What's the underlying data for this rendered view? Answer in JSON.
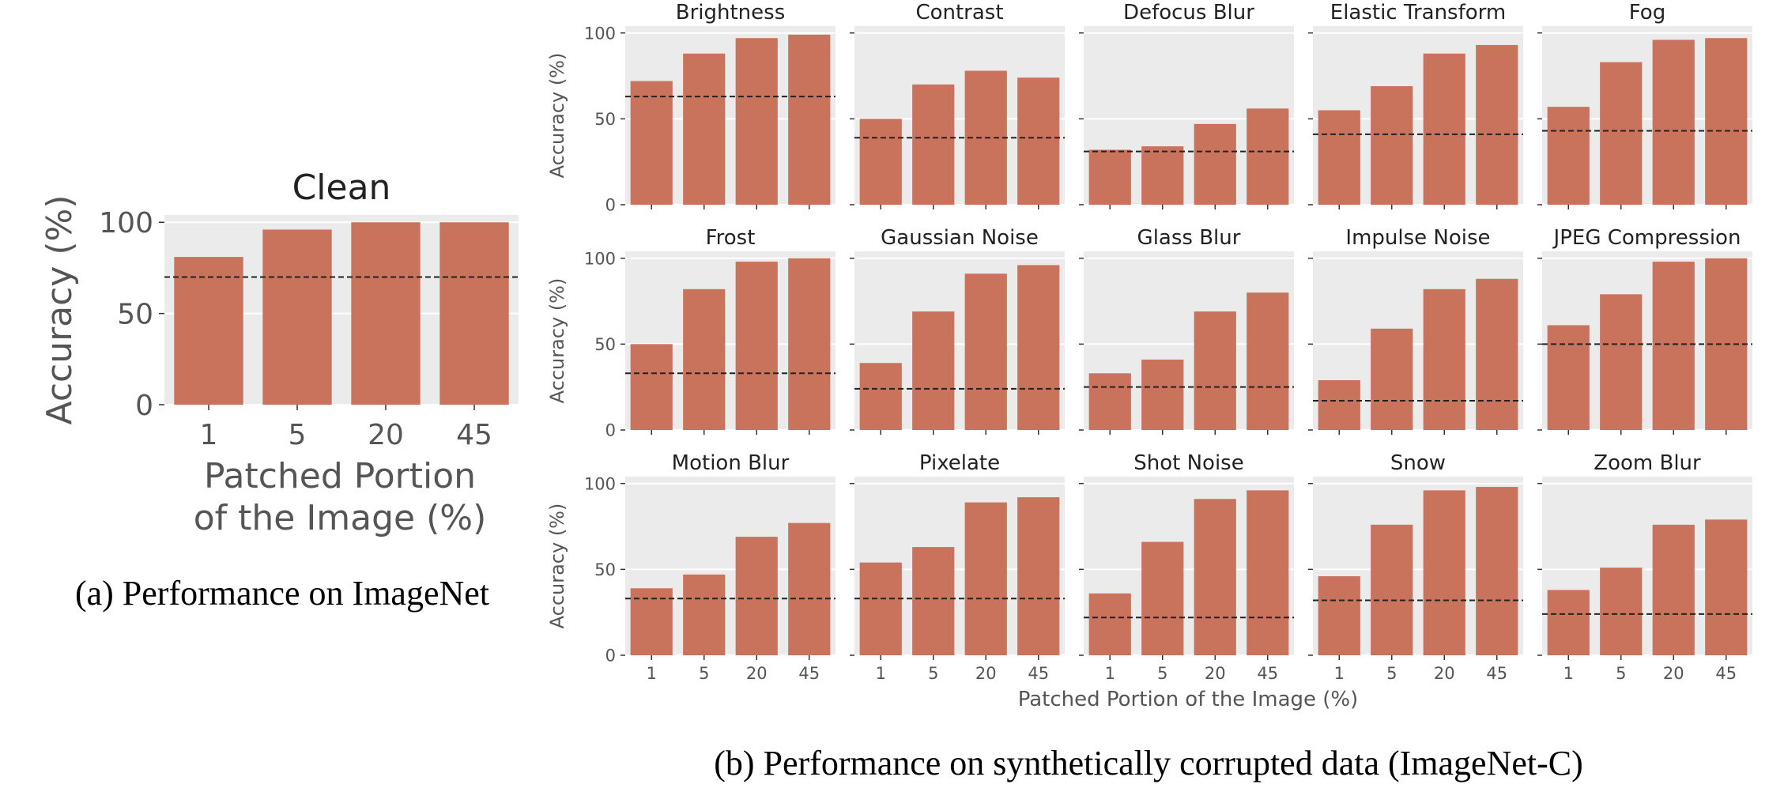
{
  "captions": {
    "a": "(a) Performance on ImageNet",
    "b": "(b) Performance on synthetically corrupted data (ImageNet-C)"
  },
  "colors": {
    "bar": "#c9735d",
    "panel_bg": "#ebebeb",
    "baseline": "#222222"
  },
  "shared": {
    "xlabel": "Patched Portion of the Image (%)",
    "ylabel": "Accuracy (%)",
    "yticks": [
      0,
      50,
      100
    ],
    "ylim": [
      0,
      104
    ]
  },
  "chart_data": [
    {
      "type": "bar",
      "title": "Clean",
      "xlabel_lines": [
        "Patched Portion",
        "of the Image (%)"
      ],
      "ylabel": "Accuracy (%)",
      "categories": [
        "1",
        "5",
        "20",
        "45"
      ],
      "values": [
        81,
        96,
        100,
        100
      ],
      "baseline": 70,
      "ylim": [
        0,
        104
      ],
      "grid": true
    },
    {
      "type": "bar",
      "layout": "3x5 small multiples",
      "categories": [
        "1",
        "5",
        "20",
        "45"
      ],
      "xlabel": "Patched Portion of the Image (%)",
      "ylabel": "Accuracy (%)",
      "ylim": [
        0,
        104
      ],
      "grid": true,
      "panels": [
        {
          "title": "Brightness",
          "values": [
            72,
            88,
            97,
            99
          ],
          "baseline": 63
        },
        {
          "title": "Contrast",
          "values": [
            50,
            70,
            78,
            74
          ],
          "baseline": 39
        },
        {
          "title": "Defocus Blur",
          "values": [
            32,
            34,
            47,
            56
          ],
          "baseline": 31
        },
        {
          "title": "Elastic Transform",
          "values": [
            55,
            69,
            88,
            93
          ],
          "baseline": 41
        },
        {
          "title": "Fog",
          "values": [
            57,
            83,
            96,
            97
          ],
          "baseline": 43
        },
        {
          "title": "Frost",
          "values": [
            50,
            82,
            98,
            100
          ],
          "baseline": 33
        },
        {
          "title": "Gaussian Noise",
          "values": [
            39,
            69,
            91,
            96
          ],
          "baseline": 24
        },
        {
          "title": "Glass Blur",
          "values": [
            33,
            41,
            69,
            80
          ],
          "baseline": 25
        },
        {
          "title": "Impulse Noise",
          "values": [
            29,
            59,
            82,
            88
          ],
          "baseline": 17
        },
        {
          "title": "JPEG Compression",
          "values": [
            61,
            79,
            98,
            100
          ],
          "baseline": 50
        },
        {
          "title": "Motion Blur",
          "values": [
            39,
            47,
            69,
            77
          ],
          "baseline": 33
        },
        {
          "title": "Pixelate",
          "values": [
            54,
            63,
            89,
            92
          ],
          "baseline": 33
        },
        {
          "title": "Shot Noise",
          "values": [
            36,
            66,
            91,
            96
          ],
          "baseline": 22
        },
        {
          "title": "Snow",
          "values": [
            46,
            76,
            96,
            98
          ],
          "baseline": 32
        },
        {
          "title": "Zoom Blur",
          "values": [
            38,
            51,
            76,
            79
          ],
          "baseline": 24
        }
      ]
    }
  ]
}
